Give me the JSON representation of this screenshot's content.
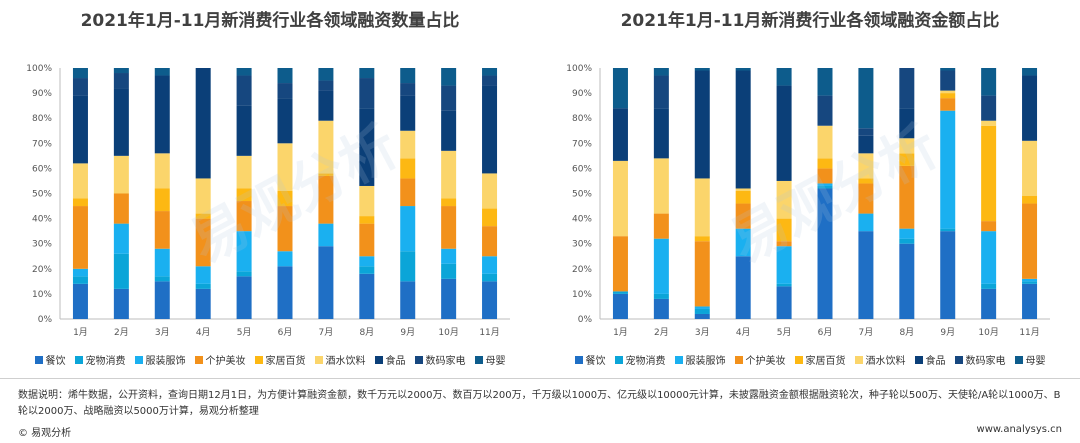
{
  "legend_colors": [
    "#1f6fc5",
    "#0ba5d8",
    "#1ab0f0",
    "#f2911b",
    "#fdb813",
    "#fbd56b",
    "#0b3f78",
    "#16477f",
    "#0d5c8c"
  ],
  "chart_data": [
    {
      "type": "bar",
      "stacked": true,
      "title": "2021年1月-11月新消费行业各领域融资数量占比",
      "categories": [
        "1月",
        "2月",
        "3月",
        "4月",
        "5月",
        "6月",
        "7月",
        "8月",
        "9月",
        "10月",
        "11月"
      ],
      "y_ticks": [
        "0%",
        "10%",
        "20%",
        "30%",
        "40%",
        "50%",
        "60%",
        "70%",
        "80%",
        "90%",
        "100%"
      ],
      "ylim": [
        0,
        100
      ],
      "series": [
        {
          "name": "餐饮",
          "values": [
            14,
            12,
            15,
            12,
            17,
            21,
            29,
            18,
            15,
            16,
            15
          ]
        },
        {
          "name": "宠物消费",
          "values": [
            3,
            14,
            2,
            2,
            2,
            0,
            0,
            3,
            12,
            6,
            3
          ]
        },
        {
          "name": "服装服饰",
          "values": [
            3,
            12,
            11,
            7,
            16,
            6,
            9,
            4,
            18,
            6,
            7
          ]
        },
        {
          "name": "个护美妆",
          "values": [
            25,
            12,
            15,
            19,
            12,
            18,
            19,
            13,
            11,
            17,
            12
          ]
        },
        {
          "name": "家居百货",
          "values": [
            3,
            0,
            9,
            2,
            5,
            6,
            1,
            3,
            8,
            3,
            7
          ]
        },
        {
          "name": "酒水饮料",
          "values": [
            14,
            15,
            14,
            14,
            13,
            19,
            21,
            12,
            11,
            19,
            14
          ]
        },
        {
          "name": "食品",
          "values": [
            27,
            27,
            31,
            44,
            20,
            18,
            12,
            31,
            14,
            16,
            35
          ]
        },
        {
          "name": "数码家电",
          "values": [
            7,
            6,
            0,
            0,
            12,
            6,
            4,
            12,
            5,
            10,
            4
          ]
        },
        {
          "name": "母婴",
          "values": [
            4,
            2,
            3,
            0,
            3,
            6,
            5,
            4,
            6,
            7,
            3
          ]
        }
      ]
    },
    {
      "type": "bar",
      "stacked": true,
      "title": "2021年1月-11月新消费行业各领域融资金额占比",
      "categories": [
        "1月",
        "2月",
        "3月",
        "4月",
        "5月",
        "6月",
        "7月",
        "8月",
        "9月",
        "10月",
        "11月"
      ],
      "y_ticks": [
        "0%",
        "10%",
        "20%",
        "30%",
        "40%",
        "50%",
        "60%",
        "70%",
        "80%",
        "90%",
        "100%"
      ],
      "ylim": [
        0,
        100
      ],
      "series": [
        {
          "name": "餐饮",
          "values": [
            10,
            8,
            2,
            25,
            13,
            52,
            35,
            30,
            35,
            12,
            14
          ]
        },
        {
          "name": "宠物消费",
          "values": [
            1,
            2,
            2,
            0,
            1,
            1,
            0,
            2,
            1,
            2,
            1
          ]
        },
        {
          "name": "服装服饰",
          "values": [
            0,
            22,
            1,
            11,
            15,
            1,
            7,
            4,
            47,
            21,
            1
          ]
        },
        {
          "name": "个护美妆",
          "values": [
            22,
            10,
            26,
            10,
            2,
            6,
            12,
            25,
            5,
            4,
            30
          ]
        },
        {
          "name": "家居百货",
          "values": [
            0,
            0,
            2,
            5,
            9,
            4,
            2,
            5,
            2,
            38,
            3
          ]
        },
        {
          "name": "酒水饮料",
          "values": [
            30,
            22,
            23,
            1,
            15,
            13,
            10,
            6,
            1,
            2,
            22
          ]
        },
        {
          "name": "食品",
          "values": [
            21,
            20,
            43,
            47,
            38,
            0,
            7,
            12,
            0,
            0,
            26
          ]
        },
        {
          "name": "数码家电",
          "values": [
            0,
            13,
            0,
            0,
            0,
            12,
            3,
            16,
            8,
            10,
            0
          ]
        },
        {
          "name": "母婴",
          "values": [
            16,
            3,
            1,
            1,
            7,
            11,
            24,
            0,
            1,
            11,
            3
          ]
        }
      ]
    }
  ],
  "footer": {
    "note": "数据说明：烯牛数据，公开资料，查询日期12月1日，为方便计算融资金额，数千万元以2000万、数百万以200万，千万级以1000万、亿元级以10000元计算，未披露融资金额根据融资轮次，种子轮以500万、天使轮/A轮以1000万、B轮以2000万、战略融资以5000万计算，易观分析整理",
    "brand_left": "© 易观分析",
    "brand_right": "www.analysys.cn"
  }
}
